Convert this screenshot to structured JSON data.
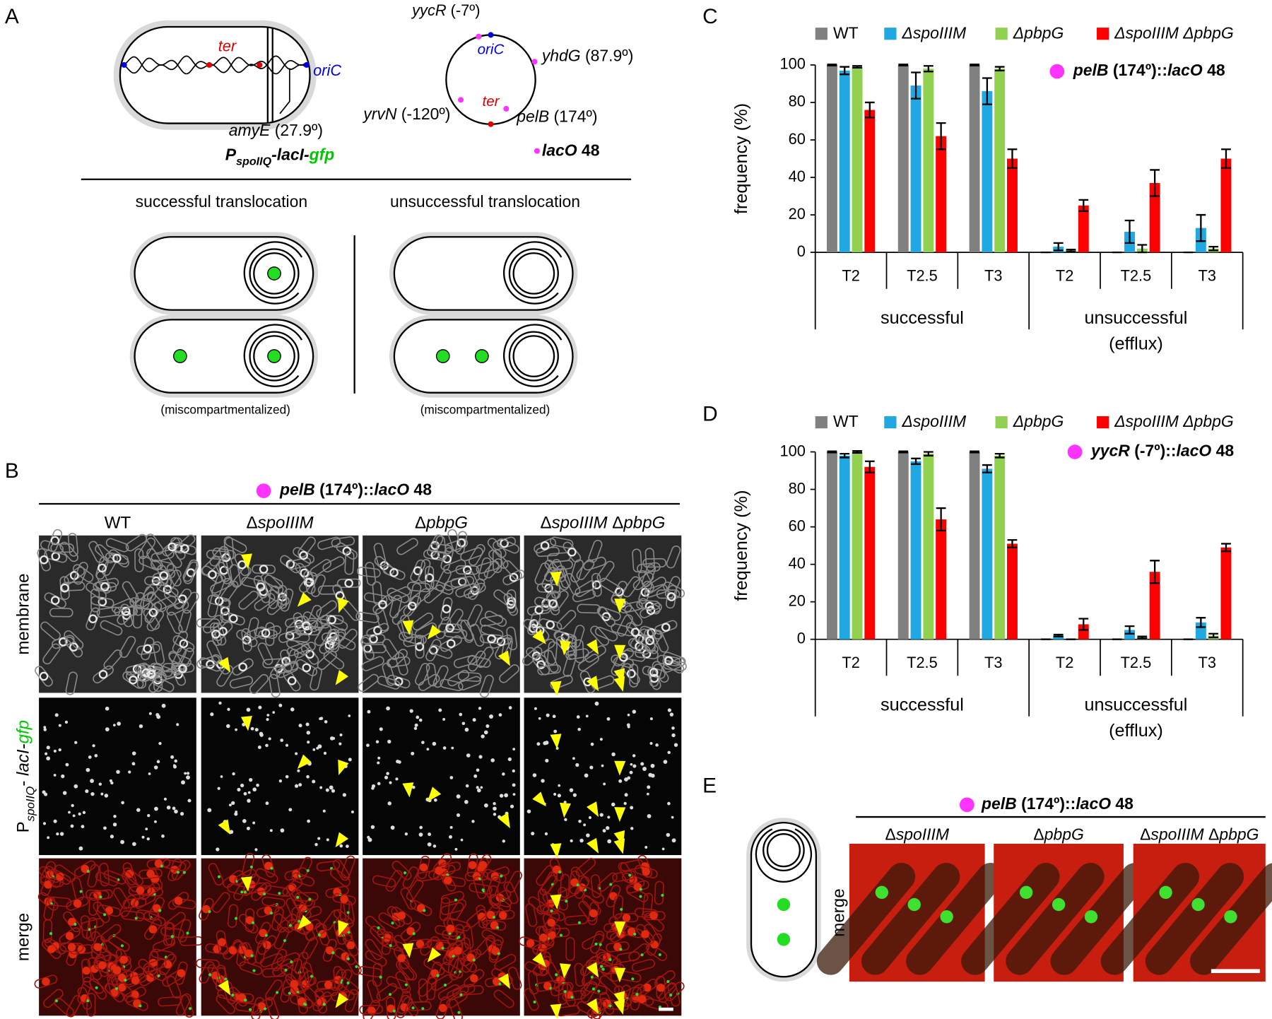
{
  "panel_labels": [
    "A",
    "B",
    "C",
    "D",
    "E"
  ],
  "panel_a": {
    "ter": "ter",
    "oric": "oriC",
    "amye": [
      "amyE",
      " (27.9º)"
    ],
    "construct": [
      "P",
      "spoIIQ",
      "-lacI-",
      "gfp"
    ],
    "map": {
      "yycr": [
        "yycR",
        " (-7º)"
      ],
      "oric": "oriC",
      "yhdg": [
        "yhdG",
        " (87.9º)"
      ],
      "ter": "ter",
      "yrvn": [
        "yrvN",
        " (-120º)"
      ],
      "pelb": [
        "pelB",
        " (174º)"
      ]
    },
    "laco": [
      "lacO",
      " 48"
    ],
    "successful": "successful translocation",
    "unsuccessful": "unsuccessful translocation",
    "misc": [
      "(miscompartmentalized)",
      "(miscompartmentalized)"
    ]
  },
  "panel_b": {
    "header": [
      "pelB",
      " (174º)::",
      "lacO",
      " 48"
    ],
    "columns": [
      [
        "WT"
      ],
      [
        "Δ",
        "spoIIIM"
      ],
      [
        "Δ",
        "pbpG"
      ],
      [
        "Δ",
        "spoIIIM",
        " Δ",
        "pbpG"
      ]
    ],
    "rows": [
      [
        "membrane"
      ],
      [
        "P",
        "spoIIQ",
        "- ",
        "lacI-",
        "gfp"
      ],
      [
        "merge"
      ]
    ]
  },
  "chart_data": [
    {
      "type": "bar",
      "ylabel": "frequency (%)",
      "annotation": [
        "pelB",
        " (174º)::",
        "lacO",
        " 48"
      ],
      "groups": [
        {
          "name": "successful",
          "categories": [
            "T2",
            "T2.5",
            "T3"
          ]
        },
        {
          "name": [
            "unsuccessful",
            "(efflux)"
          ],
          "categories": [
            "T2",
            "T2.5",
            "T3"
          ]
        }
      ],
      "series": [
        {
          "name": "WT",
          "color": "#808080",
          "values": [
            100,
            100,
            100,
            0,
            0,
            0
          ],
          "errors": [
            0.3,
            0.3,
            0.3,
            0,
            0,
            0
          ]
        },
        {
          "name": "ΔspoIIIM",
          "color": "#1fa8e1",
          "values": [
            97,
            89,
            86,
            3,
            11,
            13
          ],
          "errors": [
            2,
            7,
            7,
            2,
            6,
            7
          ]
        },
        {
          "name": "ΔpbpG",
          "color": "#92d050",
          "values": [
            99,
            98,
            98,
            1,
            2,
            2
          ],
          "errors": [
            0.5,
            1.5,
            1,
            0.5,
            2,
            1
          ]
        },
        {
          "name": "ΔspoIIIM ΔpbpG",
          "color": "#ff0000",
          "values": [
            76,
            62,
            50,
            25,
            37,
            50
          ],
          "errors": [
            4,
            7,
            5,
            3,
            7,
            5
          ]
        }
      ],
      "ylim": [
        0,
        100
      ],
      "yticks": [
        0,
        20,
        40,
        60,
        80,
        100
      ]
    },
    {
      "type": "bar",
      "ylabel": "frequency (%)",
      "annotation": [
        "yycR",
        " (-7º)::",
        "lacO",
        " 48"
      ],
      "groups": [
        {
          "name": "successful",
          "categories": [
            "T2",
            "T2.5",
            "T3"
          ]
        },
        {
          "name": [
            "unsuccessful",
            "(efflux)"
          ],
          "categories": [
            "T2",
            "T2.5",
            "T3"
          ]
        }
      ],
      "series": [
        {
          "name": "WT",
          "color": "#808080",
          "values": [
            100,
            100,
            100,
            0,
            0,
            0
          ],
          "errors": [
            0.3,
            0.3,
            0.3,
            0,
            0,
            0
          ]
        },
        {
          "name": "ΔspoIIIM",
          "color": "#1fa8e1",
          "values": [
            98,
            95,
            91,
            2,
            5,
            9
          ],
          "errors": [
            1,
            1.5,
            2,
            0.5,
            2,
            2.5
          ]
        },
        {
          "name": "ΔpbpG",
          "color": "#92d050",
          "values": [
            100,
            99,
            98,
            0,
            1,
            2
          ],
          "errors": [
            0.5,
            1,
            1,
            0,
            0.5,
            1
          ]
        },
        {
          "name": "ΔspoIIIM ΔpbpG",
          "color": "#ff0000",
          "values": [
            92,
            64,
            51,
            8,
            36,
            49
          ],
          "errors": [
            3,
            6,
            2,
            3,
            6,
            2
          ]
        }
      ],
      "ylim": [
        0,
        100
      ],
      "yticks": [
        0,
        20,
        40,
        60,
        80,
        100
      ]
    }
  ],
  "panel_e": {
    "header": [
      "pelB",
      " (174º)::",
      "lacO",
      " 48"
    ],
    "columns": [
      [
        "Δ",
        "spoIIIM"
      ],
      [
        "Δ",
        "pbpG"
      ],
      [
        "Δ",
        "spoIIIM",
        " Δ",
        "pbpG"
      ]
    ],
    "row": "merge"
  }
}
